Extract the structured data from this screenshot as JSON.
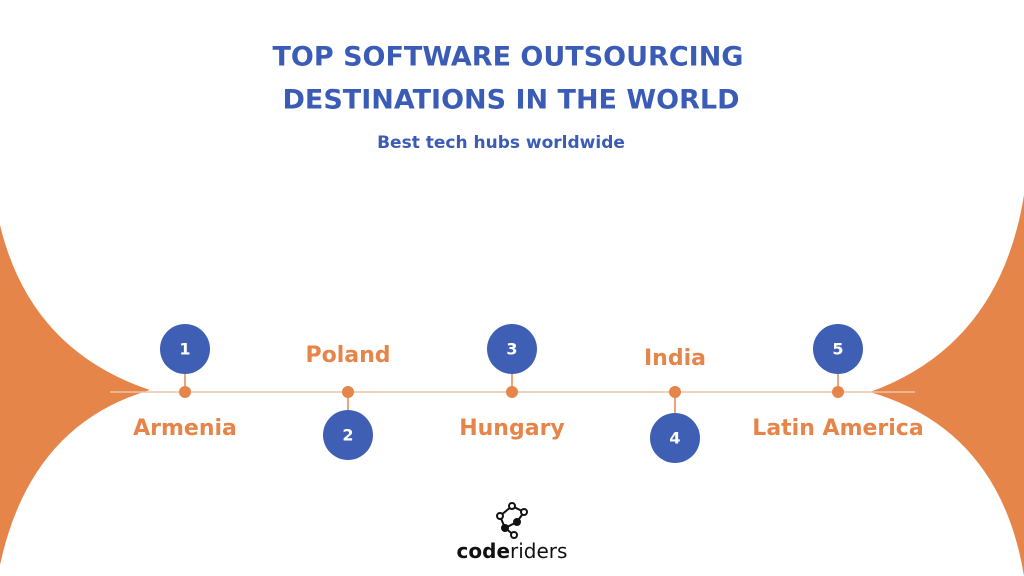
{
  "header": {
    "title_lines": [
      "TOP SOFTWARE OUTSOURCING",
      "DESTINATIONS IN THE WORLD"
    ],
    "subtitle": "Best tech hubs worldwide"
  },
  "items": [
    {
      "rank": "1",
      "label": "Armenia"
    },
    {
      "rank": "2",
      "label": "Poland"
    },
    {
      "rank": "3",
      "label": "Hungary"
    },
    {
      "rank": "4",
      "label": "India"
    },
    {
      "rank": "5",
      "label": "Latin America"
    }
  ],
  "logo": {
    "bold": "code",
    "light": "riders"
  }
}
